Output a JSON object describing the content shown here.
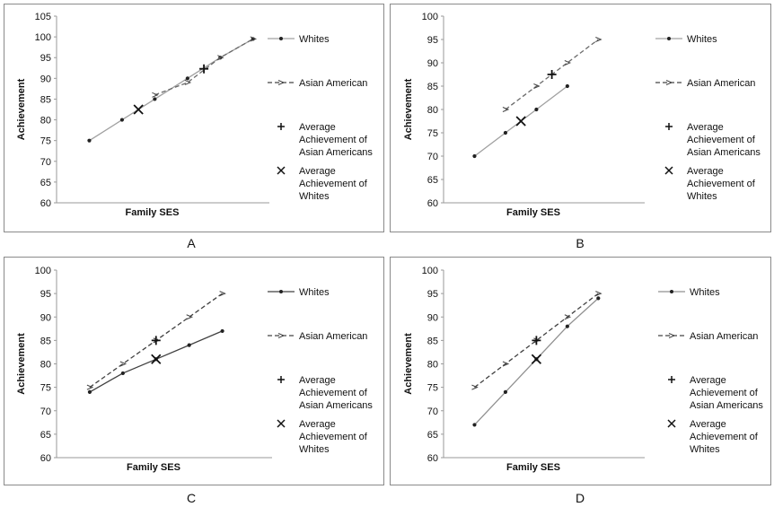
{
  "figure": {
    "background": "#ffffff",
    "frame_color": "#8a8a8a"
  },
  "legend": {
    "whites": "Whites",
    "asian": "Asian American",
    "avg_asian": [
      "Average",
      "Achievement of",
      "Asian Americans"
    ],
    "avg_whites": [
      "Average",
      "Achievement of",
      "Whites"
    ]
  },
  "chart_data": [
    {
      "type": "line",
      "panel_label": "A",
      "xlabel": "Family SES",
      "ylabel": "Achievement",
      "ylim": [
        60,
        105
      ],
      "yticks": [
        60,
        65,
        70,
        75,
        80,
        85,
        90,
        95,
        100,
        105
      ],
      "x": [
        1,
        2,
        3,
        4,
        5,
        6
      ],
      "series": [
        {
          "name": "Whites",
          "style": "solid",
          "color": "#a0a0a0",
          "x": [
            1,
            2,
            3,
            4,
            5,
            6
          ],
          "values": [
            75,
            80,
            85,
            90,
            95,
            99.5
          ]
        },
        {
          "name": "Asian American",
          "style": "dashed",
          "color": "#6a6a6a",
          "x": [
            3,
            4,
            5,
            6
          ],
          "values": [
            86,
            89,
            95,
            99.5
          ]
        }
      ],
      "averages": {
        "asian": {
          "x": 4.5,
          "y": 92.3
        },
        "whites": {
          "x": 2.5,
          "y": 82.5
        }
      }
    },
    {
      "type": "line",
      "panel_label": "B",
      "xlabel": "Family SES",
      "ylabel": "Achievement",
      "ylim": [
        60,
        100
      ],
      "yticks": [
        60,
        65,
        70,
        75,
        80,
        85,
        90,
        95,
        100
      ],
      "x": [
        1,
        2,
        3,
        4,
        5,
        6
      ],
      "series": [
        {
          "name": "Whites",
          "style": "solid",
          "color": "#a0a0a0",
          "x": [
            1,
            2,
            3,
            4
          ],
          "values": [
            70,
            75,
            80,
            85
          ]
        },
        {
          "name": "Asian American",
          "style": "dashed",
          "color": "#6a6a6a",
          "x": [
            2,
            3,
            4,
            5
          ],
          "values": [
            80,
            85,
            90,
            95
          ]
        }
      ],
      "averages": {
        "asian": {
          "x": 3.5,
          "y": 87.5
        },
        "whites": {
          "x": 2.5,
          "y": 77.5
        }
      }
    },
    {
      "type": "line",
      "panel_label": "C",
      "xlabel": "Family SES",
      "ylabel": "Achievement",
      "ylim": [
        60,
        100
      ],
      "yticks": [
        60,
        65,
        70,
        75,
        80,
        85,
        90,
        95,
        100
      ],
      "x": [
        1,
        2,
        3,
        4,
        5,
        6
      ],
      "series": [
        {
          "name": "Whites",
          "style": "solid",
          "color": "#404040",
          "x": [
            1,
            2,
            3,
            4,
            5
          ],
          "values": [
            74,
            78,
            81,
            84,
            87
          ]
        },
        {
          "name": "Asian American",
          "style": "dashed",
          "color": "#404040",
          "x": [
            1,
            2,
            3,
            4,
            5
          ],
          "values": [
            75,
            80,
            85,
            90,
            95
          ]
        }
      ],
      "averages": {
        "asian": {
          "x": 3,
          "y": 85
        },
        "whites": {
          "x": 3,
          "y": 81
        }
      }
    },
    {
      "type": "line",
      "panel_label": "D",
      "xlabel": "Family SES",
      "ylabel": "Achievement",
      "ylim": [
        60,
        100
      ],
      "yticks": [
        60,
        65,
        70,
        75,
        80,
        85,
        90,
        95,
        100
      ],
      "x": [
        1,
        2,
        3,
        4,
        5,
        6
      ],
      "series": [
        {
          "name": "Whites",
          "style": "solid",
          "color": "#909090",
          "x": [
            1,
            2,
            3,
            4,
            5
          ],
          "values": [
            67,
            74,
            81,
            88,
            94
          ]
        },
        {
          "name": "Asian American",
          "style": "dashed",
          "color": "#404040",
          "x": [
            1,
            2,
            3,
            4,
            5
          ],
          "values": [
            75,
            80,
            85,
            90,
            95
          ]
        }
      ],
      "averages": {
        "asian": {
          "x": 3,
          "y": 85
        },
        "whites": {
          "x": 3,
          "y": 81
        }
      }
    }
  ]
}
